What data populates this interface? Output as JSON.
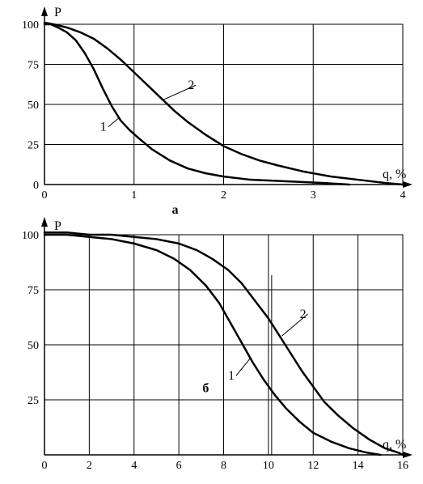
{
  "background_color": "#ffffff",
  "stroke_color": "#000000",
  "font_family": "Times New Roman",
  "chart_a": {
    "type": "line",
    "panel_label": "а",
    "panel_label_fontsize": 16,
    "xlabel": "q, %",
    "ylabel": "P",
    "label_fontsize": 16,
    "tick_fontsize": 14,
    "xlim": [
      0,
      4
    ],
    "ylim": [
      0,
      100
    ],
    "xtick_step": 1,
    "yticks": [
      0,
      25,
      50,
      75,
      100
    ],
    "grid_color": "#000000",
    "grid_linewidth": 1,
    "series": {
      "1": {
        "label": "1",
        "label_fontsize": 16,
        "line_color": "#000000",
        "line_width": 2.5,
        "points": [
          [
            0.0,
            100
          ],
          [
            0.07,
            100
          ],
          [
            0.15,
            98
          ],
          [
            0.25,
            95
          ],
          [
            0.35,
            90
          ],
          [
            0.45,
            82
          ],
          [
            0.55,
            72
          ],
          [
            0.65,
            60
          ],
          [
            0.75,
            49
          ],
          [
            0.85,
            40
          ],
          [
            0.95,
            34
          ],
          [
            1.05,
            29
          ],
          [
            1.2,
            22
          ],
          [
            1.4,
            15
          ],
          [
            1.6,
            10
          ],
          [
            1.8,
            7
          ],
          [
            2.0,
            5
          ],
          [
            2.3,
            3
          ],
          [
            2.7,
            2
          ],
          [
            3.1,
            1
          ],
          [
            3.4,
            0
          ]
        ]
      },
      "2": {
        "label": "2",
        "label_fontsize": 16,
        "line_color": "#000000",
        "line_width": 2.5,
        "points": [
          [
            0.0,
            101
          ],
          [
            0.1,
            100
          ],
          [
            0.25,
            98
          ],
          [
            0.4,
            95
          ],
          [
            0.55,
            91
          ],
          [
            0.7,
            85
          ],
          [
            0.85,
            78
          ],
          [
            1.0,
            70
          ],
          [
            1.15,
            62
          ],
          [
            1.3,
            54
          ],
          [
            1.45,
            46
          ],
          [
            1.6,
            39
          ],
          [
            1.8,
            31
          ],
          [
            2.0,
            24
          ],
          [
            2.2,
            19
          ],
          [
            2.4,
            15
          ],
          [
            2.6,
            12
          ],
          [
            2.9,
            8
          ],
          [
            3.2,
            5
          ],
          [
            3.5,
            3
          ],
          [
            3.8,
            1
          ],
          [
            4.0,
            0
          ]
        ]
      }
    },
    "series_label_positions": {
      "1": {
        "x": 0.62,
        "y": 36,
        "leader_to": {
          "x": 0.84,
          "y": 42
        }
      },
      "2": {
        "x": 1.6,
        "y": 62,
        "leader_to": {
          "x": 1.33,
          "y": 53
        }
      }
    }
  },
  "chart_b": {
    "type": "line",
    "panel_label": "б",
    "panel_label_fontsize": 16,
    "xlabel": "q, %",
    "ylabel": "P",
    "label_fontsize": 16,
    "tick_fontsize": 14,
    "xlim": [
      0,
      16
    ],
    "ylim": [
      0,
      100
    ],
    "xtick_step": 2,
    "yticks": [
      25,
      50,
      75,
      100
    ],
    "grid_color": "#000000",
    "grid_linewidth": 1,
    "series": {
      "1": {
        "label": "1",
        "label_fontsize": 16,
        "line_color": "#000000",
        "line_width": 2.5,
        "points": [
          [
            0.0,
            100
          ],
          [
            1.0,
            100
          ],
          [
            2.0,
            99
          ],
          [
            3.0,
            98
          ],
          [
            4.0,
            96
          ],
          [
            5.0,
            93
          ],
          [
            5.8,
            89
          ],
          [
            6.5,
            84
          ],
          [
            7.2,
            77
          ],
          [
            7.8,
            69
          ],
          [
            8.3,
            60
          ],
          [
            8.8,
            51
          ],
          [
            9.3,
            42
          ],
          [
            9.8,
            34
          ],
          [
            10.3,
            27
          ],
          [
            10.8,
            21
          ],
          [
            11.4,
            15
          ],
          [
            12.0,
            10
          ],
          [
            12.8,
            6
          ],
          [
            13.6,
            3
          ],
          [
            14.4,
            1
          ],
          [
            15.0,
            0
          ]
        ]
      },
      "2": {
        "label": "2",
        "label_fontsize": 16,
        "line_color": "#000000",
        "line_width": 2.5,
        "points": [
          [
            0.0,
            101
          ],
          [
            1.0,
            101
          ],
          [
            2.0,
            100
          ],
          [
            3.0,
            100
          ],
          [
            4.0,
            99
          ],
          [
            5.0,
            98
          ],
          [
            6.0,
            96
          ],
          [
            6.8,
            93
          ],
          [
            7.5,
            89
          ],
          [
            8.2,
            84
          ],
          [
            8.8,
            78
          ],
          [
            9.4,
            70
          ],
          [
            10.0,
            62
          ],
          [
            10.5,
            54
          ],
          [
            11.0,
            46
          ],
          [
            11.5,
            38
          ],
          [
            12.0,
            31
          ],
          [
            12.5,
            24
          ],
          [
            13.1,
            18
          ],
          [
            13.8,
            12
          ],
          [
            14.5,
            7
          ],
          [
            15.2,
            3
          ],
          [
            15.8,
            1
          ],
          [
            16.0,
            0
          ]
        ]
      }
    },
    "series_label_positions": {
      "1": {
        "x": 8.2,
        "y": 36,
        "leader_to": {
          "x": 9.2,
          "y": 44
        }
      },
      "2": {
        "x": 11.4,
        "y": 64,
        "leader_to": {
          "x": 10.6,
          "y": 54
        }
      }
    },
    "extra_vertical_line_x": 10
  }
}
